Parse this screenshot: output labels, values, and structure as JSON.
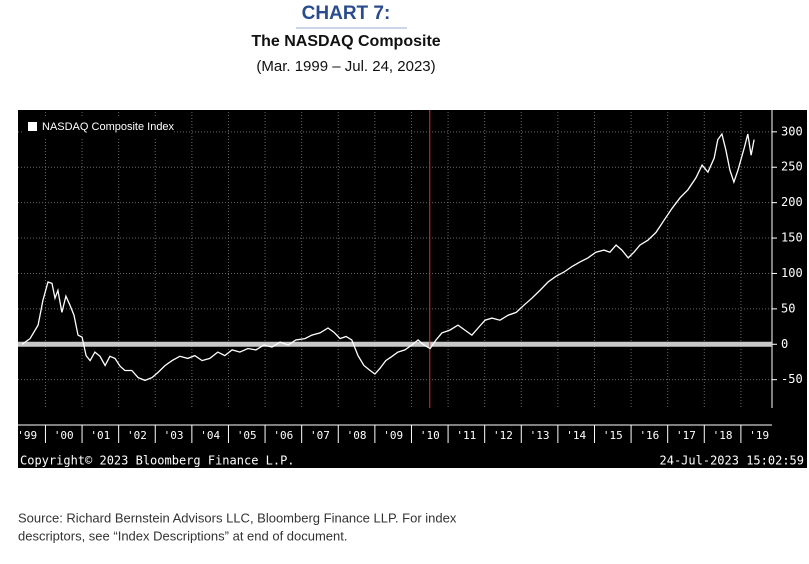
{
  "chart_data": {
    "type": "line",
    "title": "CHART 7:",
    "subtitle": "The NASDAQ Composite",
    "date_range": "(Mar. 1999 – Jul. 24, 2023)",
    "copyright": "Copyright© 2023 Bloomberg Finance L.P.",
    "timestamp": "24-Jul-2023 15:02:59",
    "source": [
      "Source: Richard Bernstein Advisors LLC, Bloomberg Finance LLP.  For index",
      "descriptors, see “Index Descriptions” at end of document."
    ],
    "legend": "top-left",
    "grid": true,
    "xlim": [
      1999.25,
      2019.85
    ],
    "ylim": [
      -90,
      328
    ],
    "yticks": [
      -50,
      0,
      50,
      100,
      150,
      200,
      250,
      300
    ],
    "xticks": [
      {
        "value": 1999,
        "label": "'99"
      },
      {
        "value": 2000,
        "label": "'00"
      },
      {
        "value": 2001,
        "label": "'01"
      },
      {
        "value": 2002,
        "label": "'02"
      },
      {
        "value": 2003,
        "label": "'03"
      },
      {
        "value": 2004,
        "label": "'04"
      },
      {
        "value": 2005,
        "label": "'05"
      },
      {
        "value": 2006,
        "label": "'06"
      },
      {
        "value": 2007,
        "label": "'07"
      },
      {
        "value": 2008,
        "label": "'08"
      },
      {
        "value": 2009,
        "label": "'09"
      },
      {
        "value": 2010,
        "label": "'10"
      },
      {
        "value": 2011,
        "label": "'11"
      },
      {
        "value": 2012,
        "label": "'12"
      },
      {
        "value": 2013,
        "label": "'13"
      },
      {
        "value": 2014,
        "label": "'14"
      },
      {
        "value": 2015,
        "label": "'15"
      },
      {
        "value": 2016,
        "label": "'16"
      },
      {
        "value": 2017,
        "label": "'17"
      },
      {
        "value": 2018,
        "label": "'18"
      },
      {
        "value": 2019,
        "label": "'19"
      }
    ],
    "hline": {
      "y": 0,
      "color": "#c8c8c8"
    },
    "vline": {
      "x": 2010.5,
      "color": "#e0302a"
    },
    "x": [
      1999.36,
      1999.58,
      1999.8,
      1999.93,
      2000.07,
      2000.18,
      2000.26,
      2000.34,
      2000.45,
      2000.56,
      2000.67,
      2000.78,
      2000.89,
      2001.0,
      2001.11,
      2001.22,
      2001.35,
      2001.49,
      2001.63,
      2001.76,
      2001.9,
      2002.04,
      2002.17,
      2002.36,
      2002.53,
      2002.72,
      2002.91,
      2003.07,
      2003.27,
      2003.46,
      2003.67,
      2003.89,
      2004.08,
      2004.28,
      2004.49,
      2004.71,
      2004.9,
      2005.1,
      2005.31,
      2005.53,
      2005.75,
      2005.97,
      2006.19,
      2006.41,
      2006.63,
      2006.84,
      2007.09,
      2007.28,
      2007.5,
      2007.72,
      2007.88,
      2008.05,
      2008.21,
      2008.37,
      2008.54,
      2008.7,
      2008.87,
      2009.0,
      2009.14,
      2009.3,
      2009.47,
      2009.63,
      2009.82,
      2010.01,
      2010.18,
      2010.34,
      2010.51,
      2010.67,
      2010.83,
      2011.05,
      2011.27,
      2011.46,
      2011.65,
      2011.82,
      2012.01,
      2012.2,
      2012.42,
      2012.64,
      2012.86,
      2013.07,
      2013.29,
      2013.51,
      2013.73,
      2013.95,
      2014.17,
      2014.39,
      2014.6,
      2014.82,
      2015.04,
      2015.26,
      2015.42,
      2015.59,
      2015.75,
      2015.92,
      2016.08,
      2016.24,
      2016.46,
      2016.68,
      2016.9,
      2017.12,
      2017.34,
      2017.55,
      2017.77,
      2017.94,
      2018.1,
      2018.27,
      2018.37,
      2018.48,
      2018.59,
      2018.7,
      2018.81,
      2018.92,
      2019.09,
      2019.19,
      2019.28,
      2019.36
    ],
    "series": [
      {
        "name": "NASDAQ Composite Index",
        "color": "#ffffff",
        "values": [
          0,
          8,
          27,
          62,
          88,
          86,
          65,
          76,
          45,
          68,
          55,
          41,
          13,
          10,
          -16,
          -23,
          -11,
          -17,
          -30,
          -17,
          -20,
          -31,
          -37,
          -37,
          -47,
          -51,
          -47,
          -40,
          -30,
          -23,
          -17,
          -20,
          -16,
          -23,
          -20,
          -11,
          -16,
          -8,
          -11,
          -6,
          -8,
          -1,
          -4,
          3,
          -1,
          6,
          8,
          13,
          16,
          23,
          17,
          8,
          11,
          6,
          -16,
          -30,
          -37,
          -42,
          -34,
          -23,
          -17,
          -11,
          -8,
          -1,
          6,
          -1,
          -6,
          6,
          16,
          20,
          27,
          20,
          13,
          23,
          34,
          37,
          34,
          41,
          45,
          55,
          65,
          76,
          88,
          96,
          102,
          110,
          116,
          122,
          130,
          133,
          130,
          140,
          133,
          122,
          130,
          140,
          147,
          158,
          175,
          192,
          207,
          218,
          235,
          253,
          243,
          263,
          289,
          297,
          274,
          246,
          229,
          246,
          277,
          297,
          267,
          289
        ]
      }
    ]
  }
}
